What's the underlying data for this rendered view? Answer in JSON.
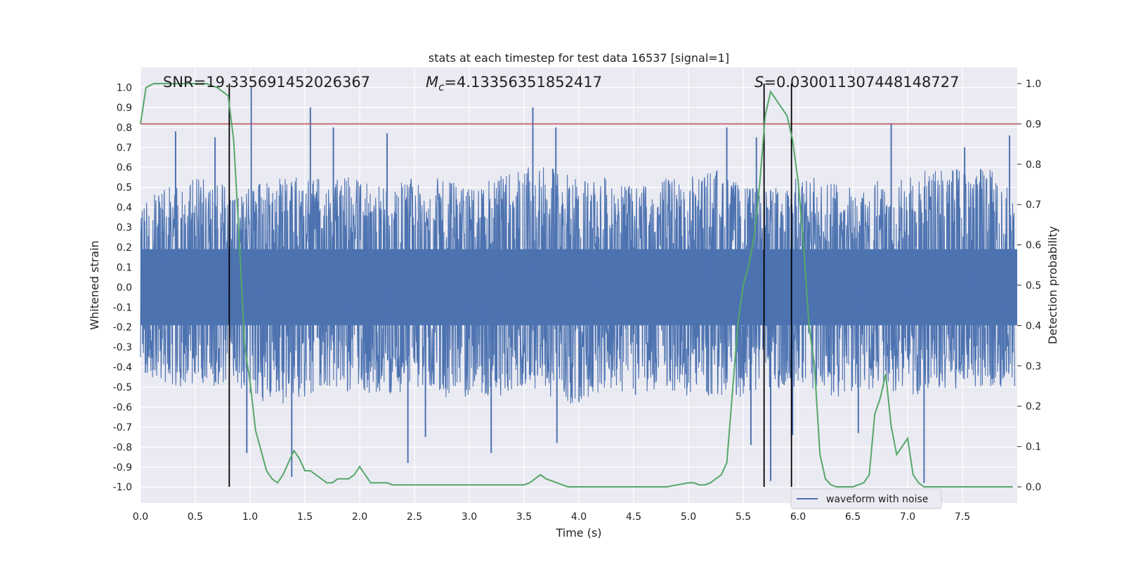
{
  "chart_data": {
    "type": "line",
    "title": "stats at each timestep for test data 16537 [signal=1]",
    "xlabel": "Time (s)",
    "ylabel": "Whitened strain",
    "ylabel_right": "Detection probability",
    "xlim": [
      0.0,
      8.0
    ],
    "ylim": [
      -1.08,
      1.1
    ],
    "ylim_right": [
      -0.04,
      1.04
    ],
    "x_ticks": [
      "0.0",
      "0.5",
      "1.0",
      "1.5",
      "2.0",
      "2.5",
      "3.0",
      "3.5",
      "4.0",
      "4.5",
      "5.0",
      "5.5",
      "6.0",
      "6.5",
      "7.0",
      "7.5"
    ],
    "y_ticks": [
      "1.0",
      "0.9",
      "0.8",
      "0.7",
      "0.6",
      "0.5",
      "0.4",
      "0.3",
      "0.2",
      "0.1",
      "0.0",
      "-0.1",
      "-0.2",
      "-0.3",
      "-0.4",
      "-0.5",
      "-0.6",
      "-0.7",
      "-0.8",
      "-0.9",
      "-1.0"
    ],
    "y_ticks_right": [
      "1.0",
      "0.9",
      "0.8",
      "0.7",
      "0.6",
      "0.5",
      "0.4",
      "0.3",
      "0.2",
      "0.1",
      "0.0"
    ],
    "grid": true,
    "annotations": {
      "snr": {
        "prefix": "SNR=",
        "value": "19.335691452026367"
      },
      "mc": {
        "symbol": "M",
        "subscript": "c",
        "value": "=4.13356351852417"
      },
      "s": {
        "symbol": "S",
        "value": "=0.030011307448148727"
      }
    },
    "vertical_markers_s": [
      0.81,
      5.69,
      5.94
    ],
    "threshold_probability": 0.9,
    "legend": {
      "label": "waveform with noise",
      "placement": "lower-right"
    },
    "colors": {
      "waveform": "#4c72b0",
      "probability": "#55a868",
      "threshold": "#c44e52",
      "markers": "#000000",
      "plot_bg": "#eaeaf2",
      "grid": "#ffffff"
    },
    "series": [
      {
        "name": "waveform with noise",
        "kind": "whitened strain envelope (approx.)",
        "x": [
          0.0,
          0.25,
          0.5,
          0.75,
          0.8,
          1.0,
          1.25,
          1.5,
          1.75,
          2.0,
          2.25,
          2.5,
          2.75,
          3.0,
          3.25,
          3.5,
          3.75,
          4.0,
          4.25,
          4.5,
          4.75,
          5.0,
          5.25,
          5.5,
          5.75,
          6.0,
          6.25,
          6.5,
          6.75,
          7.0,
          7.25,
          7.5,
          7.75,
          8.0
        ],
        "upper": [
          0.45,
          0.5,
          0.55,
          0.55,
          0.45,
          0.5,
          0.55,
          0.55,
          0.55,
          0.55,
          0.5,
          0.55,
          0.55,
          0.5,
          0.55,
          0.6,
          0.6,
          0.55,
          0.55,
          0.5,
          0.55,
          0.55,
          0.6,
          0.5,
          0.5,
          0.55,
          0.55,
          0.5,
          0.55,
          0.55,
          0.6,
          0.6,
          0.6,
          0.5
        ],
        "lower": [
          -0.45,
          -0.5,
          -0.5,
          -0.5,
          -0.45,
          -0.55,
          -0.6,
          -0.55,
          -0.5,
          -0.55,
          -0.55,
          -0.5,
          -0.55,
          -0.55,
          -0.55,
          -0.5,
          -0.55,
          -0.6,
          -0.5,
          -0.55,
          -0.5,
          -0.55,
          -0.55,
          -0.55,
          -0.5,
          -0.55,
          -0.55,
          -0.55,
          -0.5,
          -0.55,
          -0.55,
          -0.5,
          -0.5,
          -0.5
        ],
        "spike_x": [
          0.32,
          0.68,
          1.01,
          1.55,
          1.76,
          2.25,
          3.58,
          3.79,
          5.35,
          5.62,
          6.85,
          7.52,
          7.93,
          0.97,
          1.38,
          2.44,
          3.2,
          3.8,
          5.57,
          5.75,
          5.95,
          7.15,
          6.55,
          2.6
        ],
        "spike_y": [
          0.78,
          0.75,
          1.0,
          0.9,
          0.8,
          0.77,
          0.9,
          0.8,
          0.8,
          0.75,
          0.82,
          0.7,
          0.76,
          -0.83,
          -0.95,
          -0.88,
          -0.83,
          -0.78,
          -0.79,
          -0.97,
          -0.74,
          -0.98,
          -0.73,
          -0.75
        ]
      },
      {
        "name": "detection probability",
        "axis": "right",
        "x": [
          0.0,
          0.05,
          0.12,
          0.2,
          0.3,
          0.4,
          0.5,
          0.6,
          0.7,
          0.75,
          0.8,
          0.85,
          0.9,
          0.95,
          1.0,
          1.05,
          1.1,
          1.15,
          1.2,
          1.25,
          1.3,
          1.35,
          1.4,
          1.45,
          1.5,
          1.55,
          1.6,
          1.65,
          1.7,
          1.75,
          1.8,
          1.85,
          1.9,
          1.95,
          2.0,
          2.05,
          2.1,
          2.15,
          2.2,
          2.25,
          2.3,
          2.35,
          2.4,
          2.5,
          2.6,
          2.7,
          2.8,
          2.9,
          3.0,
          3.1,
          3.2,
          3.3,
          3.4,
          3.5,
          3.55,
          3.6,
          3.65,
          3.7,
          3.75,
          3.8,
          3.85,
          3.9,
          4.0,
          4.1,
          4.2,
          4.5,
          4.8,
          4.9,
          5.0,
          5.05,
          5.1,
          5.15,
          5.2,
          5.25,
          5.3,
          5.35,
          5.4,
          5.45,
          5.5,
          5.55,
          5.6,
          5.65,
          5.7,
          5.75,
          5.8,
          5.85,
          5.9,
          5.95,
          6.0,
          6.05,
          6.1,
          6.15,
          6.2,
          6.25,
          6.3,
          6.35,
          6.4,
          6.5,
          6.6,
          6.65,
          6.7,
          6.75,
          6.8,
          6.85,
          6.9,
          6.95,
          7.0,
          7.05,
          7.1,
          7.15,
          7.2,
          7.3,
          7.5,
          7.7,
          7.9,
          7.96
        ],
        "values": [
          0.9,
          0.99,
          1.0,
          1.0,
          1.0,
          1.0,
          1.0,
          1.0,
          0.99,
          0.98,
          0.97,
          0.86,
          0.62,
          0.35,
          0.26,
          0.14,
          0.09,
          0.04,
          0.02,
          0.01,
          0.03,
          0.06,
          0.09,
          0.07,
          0.04,
          0.04,
          0.03,
          0.02,
          0.01,
          0.01,
          0.02,
          0.02,
          0.02,
          0.03,
          0.05,
          0.03,
          0.01,
          0.01,
          0.01,
          0.01,
          0.005,
          0.005,
          0.005,
          0.005,
          0.005,
          0.005,
          0.005,
          0.005,
          0.005,
          0.005,
          0.005,
          0.005,
          0.005,
          0.005,
          0.01,
          0.02,
          0.03,
          0.02,
          0.015,
          0.01,
          0.005,
          0.0,
          0.0,
          0.0,
          0.0,
          0.0,
          0.0,
          0.005,
          0.01,
          0.01,
          0.005,
          0.005,
          0.01,
          0.02,
          0.03,
          0.06,
          0.23,
          0.4,
          0.5,
          0.55,
          0.62,
          0.75,
          0.92,
          0.98,
          0.96,
          0.94,
          0.92,
          0.86,
          0.76,
          0.6,
          0.4,
          0.3,
          0.08,
          0.02,
          0.005,
          0.0,
          0.0,
          0.0,
          0.01,
          0.03,
          0.18,
          0.22,
          0.28,
          0.15,
          0.08,
          0.1,
          0.12,
          0.03,
          0.01,
          0.0,
          0.0,
          0.0,
          0.0,
          0.0,
          0.0,
          0.0
        ]
      }
    ]
  }
}
